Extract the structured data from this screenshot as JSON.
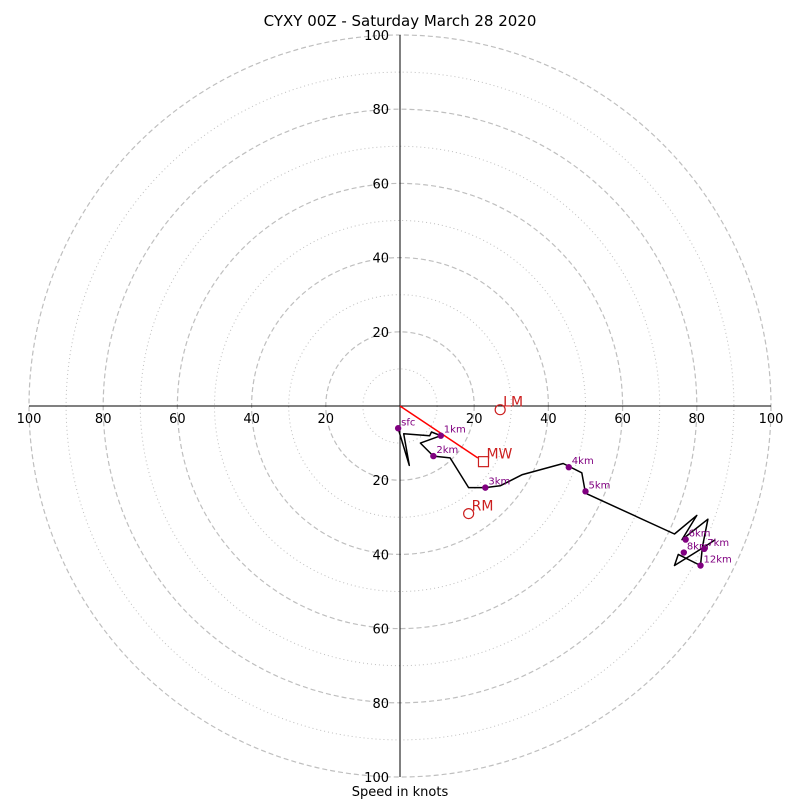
{
  "chart_data": {
    "type": "scatter",
    "title": "CYXY 00Z - Saturday March 28 2020",
    "xlabel": "Speed in knots",
    "ylabel": "",
    "xlim": [
      -100,
      100
    ],
    "ylim": [
      -100,
      100
    ],
    "tick_labels": [
      "100",
      "80",
      "60",
      "40",
      "20",
      "20",
      "40",
      "60",
      "80",
      "100"
    ],
    "ytick_labels": [
      "100",
      "80",
      "60",
      "40",
      "20",
      "20",
      "40",
      "60",
      "80",
      "100"
    ],
    "rings_dashed": [
      20,
      40,
      60,
      80,
      100
    ],
    "rings_dotted": [
      10,
      30,
      50,
      70,
      90
    ],
    "hodograph_line": [
      [
        -0.5,
        -6
      ],
      [
        2.5,
        -16
      ],
      [
        1,
        -7.5
      ],
      [
        8,
        -8
      ],
      [
        8.5,
        -7
      ],
      [
        11,
        -8
      ],
      [
        5.5,
        -10
      ],
      [
        9,
        -13.5
      ],
      [
        13.5,
        -14
      ],
      [
        18.5,
        -22
      ],
      [
        23,
        -22
      ],
      [
        27,
        -21.5
      ],
      [
        33,
        -18.5
      ],
      [
        44,
        -15.5
      ],
      [
        49,
        -18
      ],
      [
        50,
        -23.5
      ],
      [
        74,
        -34.5
      ],
      [
        80,
        -29.5
      ],
      [
        76,
        -36
      ],
      [
        83,
        -30.5
      ],
      [
        81.5,
        -38
      ],
      [
        81,
        -43
      ],
      [
        75,
        -40
      ],
      [
        74,
        -43
      ],
      [
        82,
        -38
      ],
      [
        85,
        -36
      ]
    ],
    "height_markers": [
      {
        "label": "sfc",
        "x": -0.5,
        "y": -6
      },
      {
        "label": "1km",
        "x": 11,
        "y": -8
      },
      {
        "label": "2km",
        "x": 9,
        "y": -13.5
      },
      {
        "label": "3km",
        "x": 23,
        "y": -22
      },
      {
        "label": "4km",
        "x": 45.5,
        "y": -16.5
      },
      {
        "label": "5km",
        "x": 50,
        "y": -23
      },
      {
        "label": "6km",
        "x": 77,
        "y": -36
      },
      {
        "label": "7km",
        "x": 82,
        "y": -38.5
      },
      {
        "label": "8km",
        "x": 76.5,
        "y": -39.5
      },
      {
        "label": "12km",
        "x": 81,
        "y": -43
      }
    ],
    "storm_motion": [
      {
        "label": "LM",
        "x": 27,
        "y": -1,
        "marker": "circle"
      },
      {
        "label": "MW",
        "x": 22.5,
        "y": -15,
        "marker": "square"
      },
      {
        "label": "RM",
        "x": 18.5,
        "y": -29,
        "marker": "circle"
      }
    ],
    "shear_vector": {
      "from": [
        0,
        0
      ],
      "to": [
        21,
        -14
      ]
    },
    "colors": {
      "hodograph": "#000000",
      "height_markers": "#800080",
      "storm_motion": "#cc1f1f",
      "shear_vector": "#ff0000",
      "rings": "#bfbfbf",
      "axes": "#000000"
    }
  }
}
